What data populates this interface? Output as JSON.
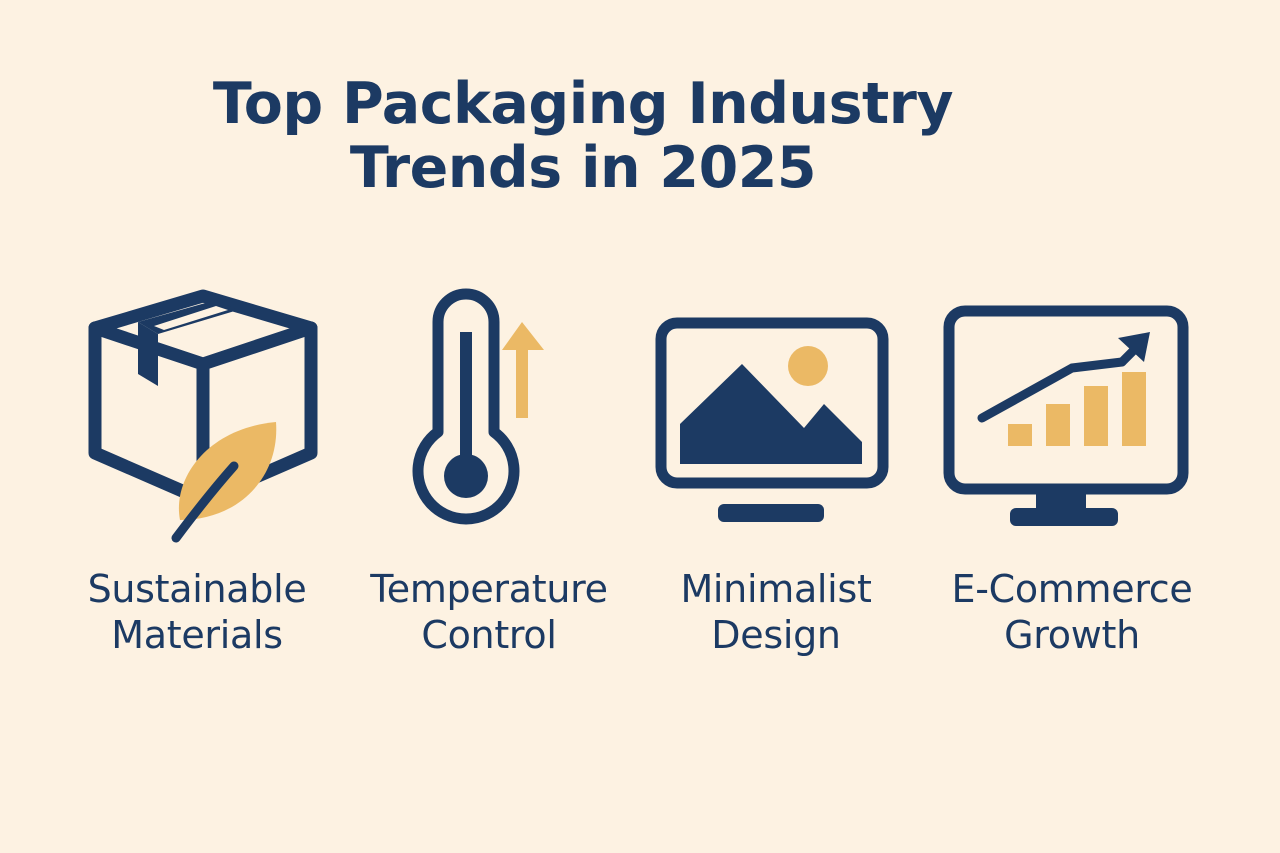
{
  "colors": {
    "background": "#fdf2e2",
    "navy": "#1c3a63",
    "gold": "#ebb965"
  },
  "title": {
    "line1": "Top Packaging Industry",
    "line2": "Trends in 2025"
  },
  "trends": [
    {
      "icon": "box-leaf-icon",
      "label_line1": "Sustainable",
      "label_line2": "Materials"
    },
    {
      "icon": "thermometer-icon",
      "label_line1": "Temperature",
      "label_line2": "Control"
    },
    {
      "icon": "monitor-landscape-icon",
      "label_line1": "Minimalist",
      "label_line2": "Design"
    },
    {
      "icon": "monitor-growth-chart-icon",
      "label_line1": "E-Commerce",
      "label_line2": "Growth"
    }
  ]
}
